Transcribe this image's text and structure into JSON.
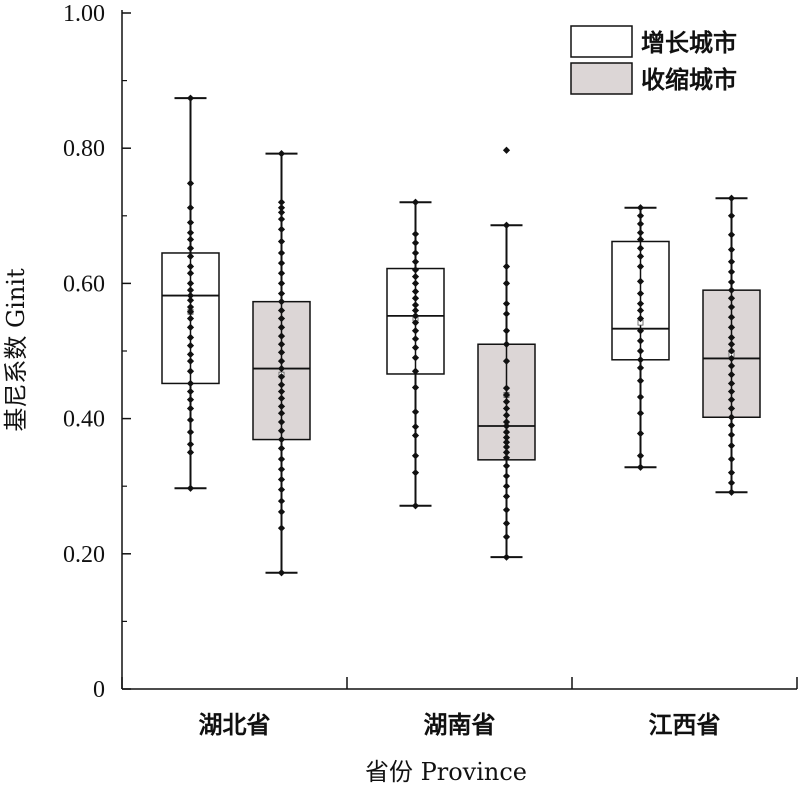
{
  "chart_data": {
    "type": "box",
    "xlabel": "省份 Province",
    "ylabel": "基尼系数 Ginit",
    "ylim": [
      0,
      1
    ],
    "yticks": [
      {
        "value": 0,
        "label": "0"
      },
      {
        "value": 0.2,
        "label": "0.20"
      },
      {
        "value": 0.4,
        "label": "0.40"
      },
      {
        "value": 0.6,
        "label": "0.60"
      },
      {
        "value": 0.8,
        "label": "0.80"
      },
      {
        "value": 1.0,
        "label": "1.00"
      }
    ],
    "categories": [
      "湖北省",
      "湖南省",
      "江西省"
    ],
    "legend_position": "top-right",
    "series": [
      {
        "name": "增长城市",
        "fill": "#ffffff",
        "boxes": [
          {
            "min": 0.297,
            "q1": 0.452,
            "median": 0.582,
            "q3": 0.645,
            "max": 0.874,
            "mean": 0.558,
            "points": [
              0.874,
              0.748,
              0.712,
              0.69,
              0.675,
              0.665,
              0.652,
              0.64,
              0.625,
              0.615,
              0.6,
              0.59,
              0.582,
              0.575,
              0.565,
              0.558,
              0.548,
              0.535,
              0.52,
              0.508,
              0.495,
              0.485,
              0.47,
              0.452,
              0.44,
              0.428,
              0.415,
              0.398,
              0.38,
              0.362,
              0.35,
              0.297
            ]
          },
          {
            "min": 0.271,
            "q1": 0.466,
            "median": 0.552,
            "q3": 0.622,
            "max": 0.72,
            "mean": 0.548,
            "points": [
              0.72,
              0.673,
              0.66,
              0.645,
              0.632,
              0.62,
              0.61,
              0.6,
              0.588,
              0.578,
              0.568,
              0.56,
              0.552,
              0.542,
              0.53,
              0.518,
              0.505,
              0.49,
              0.47,
              0.446,
              0.41,
              0.388,
              0.375,
              0.345,
              0.32,
              0.271
            ]
          },
          {
            "min": 0.328,
            "q1": 0.487,
            "median": 0.533,
            "q3": 0.662,
            "max": 0.712,
            "mean": 0.542,
            "points": [
              0.712,
              0.7,
              0.688,
              0.675,
              0.665,
              0.652,
              0.64,
              0.625,
              0.603,
              0.585,
              0.57,
              0.56,
              0.548,
              0.53,
              0.515,
              0.5,
              0.487,
              0.475,
              0.456,
              0.432,
              0.408,
              0.378,
              0.345,
              0.328
            ]
          }
        ]
      },
      {
        "name": "收缩城市",
        "fill": "#dcd6d6",
        "boxes": [
          {
            "min": 0.172,
            "q1": 0.369,
            "median": 0.474,
            "q3": 0.573,
            "max": 0.792,
            "mean": 0.465,
            "points": [
              0.792,
              0.72,
              0.712,
              0.705,
              0.695,
              0.68,
              0.662,
              0.645,
              0.63,
              0.615,
              0.6,
              0.585,
              0.573,
              0.56,
              0.548,
              0.535,
              0.522,
              0.51,
              0.498,
              0.485,
              0.474,
              0.462,
              0.45,
              0.44,
              0.43,
              0.418,
              0.408,
              0.395,
              0.382,
              0.369,
              0.356,
              0.34,
              0.325,
              0.31,
              0.295,
              0.278,
              0.262,
              0.238,
              0.172
            ]
          },
          {
            "min": 0.195,
            "q1": 0.339,
            "median": 0.389,
            "q3": 0.51,
            "max": 0.686,
            "mean": 0.435,
            "points": [
              0.797,
              0.686,
              0.625,
              0.6,
              0.57,
              0.555,
              0.53,
              0.51,
              0.485,
              0.445,
              0.435,
              0.425,
              0.415,
              0.405,
              0.395,
              0.389,
              0.38,
              0.372,
              0.365,
              0.358,
              0.35,
              0.342,
              0.33,
              0.315,
              0.3,
              0.285,
              0.265,
              0.245,
              0.225,
              0.195
            ]
          },
          {
            "min": 0.291,
            "q1": 0.402,
            "median": 0.489,
            "q3": 0.59,
            "max": 0.726,
            "mean": 0.495,
            "points": [
              0.726,
              0.7,
              0.672,
              0.65,
              0.632,
              0.617,
              0.602,
              0.59,
              0.578,
              0.565,
              0.55,
              0.535,
              0.52,
              0.51,
              0.5,
              0.489,
              0.478,
              0.465,
              0.452,
              0.44,
              0.428,
              0.415,
              0.402,
              0.39,
              0.376,
              0.36,
              0.34,
              0.32,
              0.305,
              0.291
            ]
          }
        ]
      }
    ]
  }
}
